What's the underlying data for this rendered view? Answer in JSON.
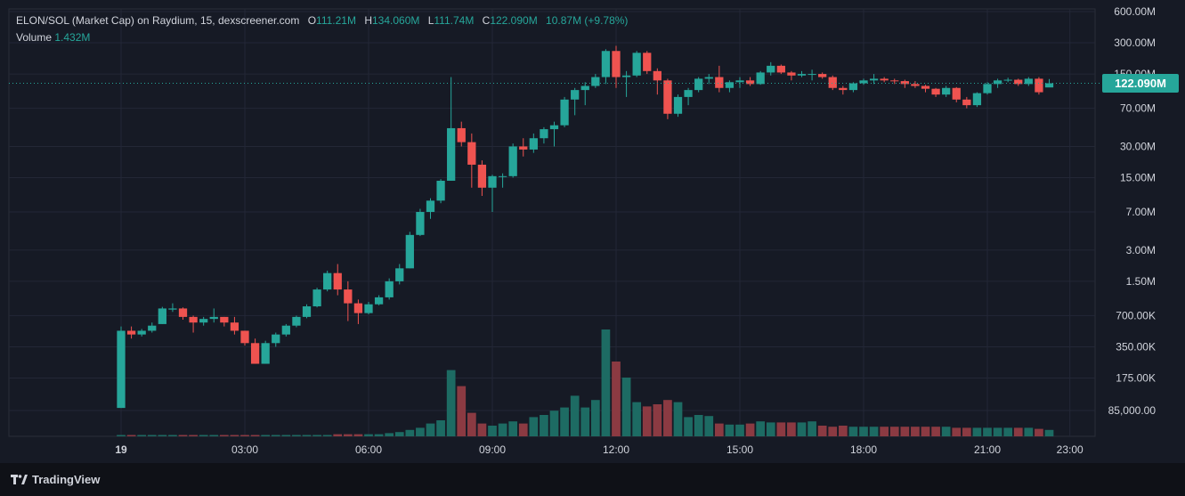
{
  "legend": {
    "symbol": "ELON/SOL (Market Cap) on Raydium, 15, dexscreener.com",
    "o_label": "O",
    "o_value": "111.21M",
    "h_label": "H",
    "h_value": "134.060M",
    "l_label": "L",
    "l_value": "111.74M",
    "c_label": "C",
    "c_value": "122.090M",
    "change": "10.87M (+9.78%)",
    "volume_label": "Volume",
    "volume_value": "1.432M"
  },
  "last_price_label": "122.090M",
  "branding": {
    "name": "TradingView",
    "logo_icon": "tradingview-logo-icon"
  },
  "colors": {
    "up": "#26a69a",
    "down": "#ef5350",
    "up_vol": "#1d6b63",
    "down_vol": "#8b3a42",
    "background": "#161a25",
    "grid": "#232736",
    "text": "#d1d4dc"
  },
  "chart_data": {
    "type": "candlestick",
    "scale": "log",
    "y_ticks": [
      "600.00M",
      "300.00M",
      "150.00M",
      "70.00M",
      "30.00M",
      "15.00M",
      "7.00M",
      "3.00M",
      "1.50M",
      "700.00K",
      "350.00K",
      "175.00K",
      "85,000.00"
    ],
    "y_tick_values": [
      600000000,
      300000000,
      150000000,
      70000000,
      30000000,
      15000000,
      7000000,
      3000000,
      1500000,
      700000,
      350000,
      175000,
      85000
    ],
    "x_ticks": [
      "19",
      "03:00",
      "06:00",
      "09:00",
      "12:00",
      "15:00",
      "18:00",
      "21:00",
      "23:00"
    ],
    "x_tick_hours": [
      0,
      3,
      6,
      9,
      12,
      15,
      18,
      21,
      23
    ],
    "candles_ohlc": [
      [
        0.09,
        0.55,
        0.09,
        0.5
      ],
      [
        0.5,
        0.55,
        0.42,
        0.46
      ],
      [
        0.46,
        0.52,
        0.44,
        0.5
      ],
      [
        0.5,
        0.6,
        0.48,
        0.56
      ],
      [
        0.58,
        0.85,
        0.58,
        0.82
      ],
      [
        0.8,
        0.92,
        0.76,
        0.82
      ],
      [
        0.82,
        0.84,
        0.64,
        0.68
      ],
      [
        0.68,
        0.7,
        0.48,
        0.6
      ],
      [
        0.6,
        0.68,
        0.56,
        0.65
      ],
      [
        0.65,
        0.82,
        0.6,
        0.68
      ],
      [
        0.68,
        0.68,
        0.55,
        0.6
      ],
      [
        0.6,
        0.68,
        0.46,
        0.5
      ],
      [
        0.5,
        0.5,
        0.36,
        0.38
      ],
      [
        0.38,
        0.42,
        0.24,
        0.24
      ],
      [
        0.24,
        0.4,
        0.24,
        0.38
      ],
      [
        0.38,
        0.48,
        0.35,
        0.46
      ],
      [
        0.46,
        0.58,
        0.44,
        0.56
      ],
      [
        0.56,
        0.7,
        0.54,
        0.68
      ],
      [
        0.68,
        0.9,
        0.66,
        0.86
      ],
      [
        0.86,
        1.3,
        0.84,
        1.25
      ],
      [
        1.25,
        1.9,
        1.2,
        1.8
      ],
      [
        1.8,
        2.2,
        1.1,
        1.25
      ],
      [
        1.25,
        1.5,
        0.62,
        0.92
      ],
      [
        0.92,
        1.0,
        0.58,
        0.74
      ],
      [
        0.74,
        0.95,
        0.72,
        0.9
      ],
      [
        0.9,
        1.1,
        0.88,
        1.05
      ],
      [
        1.05,
        1.6,
        1.0,
        1.5
      ],
      [
        1.5,
        2.2,
        1.4,
        2.0
      ],
      [
        2.0,
        4.5,
        2.0,
        4.2
      ],
      [
        4.2,
        7.5,
        4.1,
        7.0
      ],
      [
        7.0,
        9.5,
        6.0,
        9.0
      ],
      [
        9.0,
        14.5,
        8.5,
        14.0
      ],
      [
        14.0,
        140.0,
        14.0,
        45.0
      ],
      [
        45.0,
        52.0,
        30.0,
        33.0
      ],
      [
        33.0,
        40.0,
        12.0,
        20.0
      ],
      [
        20.0,
        22.0,
        10.0,
        12.0
      ],
      [
        12.0,
        16.0,
        7.0,
        15.5
      ],
      [
        15.5,
        16.5,
        12.0,
        15.5
      ],
      [
        15.5,
        32.0,
        15.0,
        30.0
      ],
      [
        30.0,
        36.0,
        24.0,
        28.0
      ],
      [
        28.0,
        40.0,
        26.0,
        36.0
      ],
      [
        36.0,
        46.0,
        32.0,
        44.0
      ],
      [
        44.0,
        52.0,
        30.0,
        48.0
      ],
      [
        48.0,
        90.0,
        46.0,
        85.0
      ],
      [
        85.0,
        110.0,
        60.0,
        105.0
      ],
      [
        105.0,
        125.0,
        75.0,
        115.0
      ],
      [
        115.0,
        150.0,
        110.0,
        140.0
      ],
      [
        140.0,
        260.0,
        120.0,
        250.0
      ],
      [
        250.0,
        280.0,
        110.0,
        140.0
      ],
      [
        140.0,
        160.0,
        90.0,
        145.0
      ],
      [
        145.0,
        250.0,
        140.0,
        240.0
      ],
      [
        240.0,
        250.0,
        150.0,
        160.0
      ],
      [
        160.0,
        170.0,
        95.0,
        130.0
      ],
      [
        130.0,
        135.0,
        55.0,
        62.0
      ],
      [
        62.0,
        95.0,
        58.0,
        90.0
      ],
      [
        90.0,
        110.0,
        75.0,
        105.0
      ],
      [
        105.0,
        140.0,
        100.0,
        135.0
      ],
      [
        135.0,
        150.0,
        120.0,
        140.0
      ],
      [
        140.0,
        180.0,
        100.0,
        110.0
      ],
      [
        110.0,
        130.0,
        100.0,
        125.0
      ],
      [
        125.0,
        140.0,
        110.0,
        130.0
      ],
      [
        130.0,
        140.0,
        115.0,
        120.0
      ],
      [
        120.0,
        160.0,
        118.0,
        155.0
      ],
      [
        155.0,
        195.0,
        145.0,
        180.0
      ],
      [
        180.0,
        185.0,
        150.0,
        155.0
      ],
      [
        155.0,
        160.0,
        130.0,
        145.0
      ],
      [
        145.0,
        160.0,
        140.0,
        150.0
      ],
      [
        150.0,
        165.0,
        130.0,
        150.0
      ],
      [
        150.0,
        155.0,
        135.0,
        140.0
      ],
      [
        140.0,
        145.0,
        105.0,
        110.0
      ],
      [
        110.0,
        115.0,
        95.0,
        105.0
      ],
      [
        105.0,
        125.0,
        100.0,
        122.0
      ],
      [
        122.0,
        135.0,
        118.0,
        130.0
      ],
      [
        130.0,
        150.0,
        120.0,
        135.0
      ],
      [
        135.0,
        140.0,
        125.0,
        130.0
      ],
      [
        130.0,
        135.0,
        120.0,
        128.0
      ],
      [
        128.0,
        132.0,
        110.0,
        120.0
      ],
      [
        120.0,
        128.0,
        110.0,
        115.0
      ],
      [
        115.0,
        118.0,
        100.0,
        108.0
      ],
      [
        108.0,
        110.0,
        90.0,
        95.0
      ],
      [
        95.0,
        115.0,
        90.0,
        110.0
      ],
      [
        110.0,
        112.0,
        80.0,
        85.0
      ],
      [
        85.0,
        90.0,
        70.0,
        75.0
      ],
      [
        75.0,
        100.0,
        72.0,
        98.0
      ],
      [
        98.0,
        125.0,
        95.0,
        120.0
      ],
      [
        120.0,
        135.0,
        110.0,
        130.0
      ],
      [
        130.0,
        138.0,
        125.0,
        132.0
      ],
      [
        132.0,
        135.0,
        115.0,
        120.0
      ],
      [
        120.0,
        140.0,
        115.0,
        135.0
      ],
      [
        135.0,
        140.0,
        95.0,
        100.0
      ],
      [
        111.21,
        134.06,
        111.74,
        122.09
      ]
    ],
    "volume_relative": [
      0.01,
      0.01,
      0.01,
      0.01,
      0.01,
      0.01,
      0.01,
      0.01,
      0.01,
      0.01,
      0.01,
      0.01,
      0.01,
      0.01,
      0.01,
      0.01,
      0.01,
      0.01,
      0.01,
      0.01,
      0.01,
      0.02,
      0.02,
      0.02,
      0.02,
      0.02,
      0.03,
      0.04,
      0.06,
      0.08,
      0.12,
      0.15,
      0.62,
      0.47,
      0.22,
      0.12,
      0.1,
      0.12,
      0.14,
      0.12,
      0.18,
      0.2,
      0.24,
      0.27,
      0.38,
      0.27,
      0.34,
      1.0,
      0.7,
      0.55,
      0.32,
      0.28,
      0.3,
      0.34,
      0.32,
      0.18,
      0.2,
      0.19,
      0.12,
      0.11,
      0.11,
      0.12,
      0.14,
      0.13,
      0.13,
      0.13,
      0.13,
      0.14,
      0.1,
      0.09,
      0.1,
      0.09,
      0.09,
      0.09,
      0.09,
      0.09,
      0.09,
      0.09,
      0.09,
      0.09,
      0.09,
      0.08,
      0.08,
      0.08,
      0.08,
      0.08,
      0.08,
      0.08,
      0.08,
      0.07,
      0.06
    ],
    "last_price": 122090000,
    "grid": true,
    "legend_position": "top-left"
  }
}
